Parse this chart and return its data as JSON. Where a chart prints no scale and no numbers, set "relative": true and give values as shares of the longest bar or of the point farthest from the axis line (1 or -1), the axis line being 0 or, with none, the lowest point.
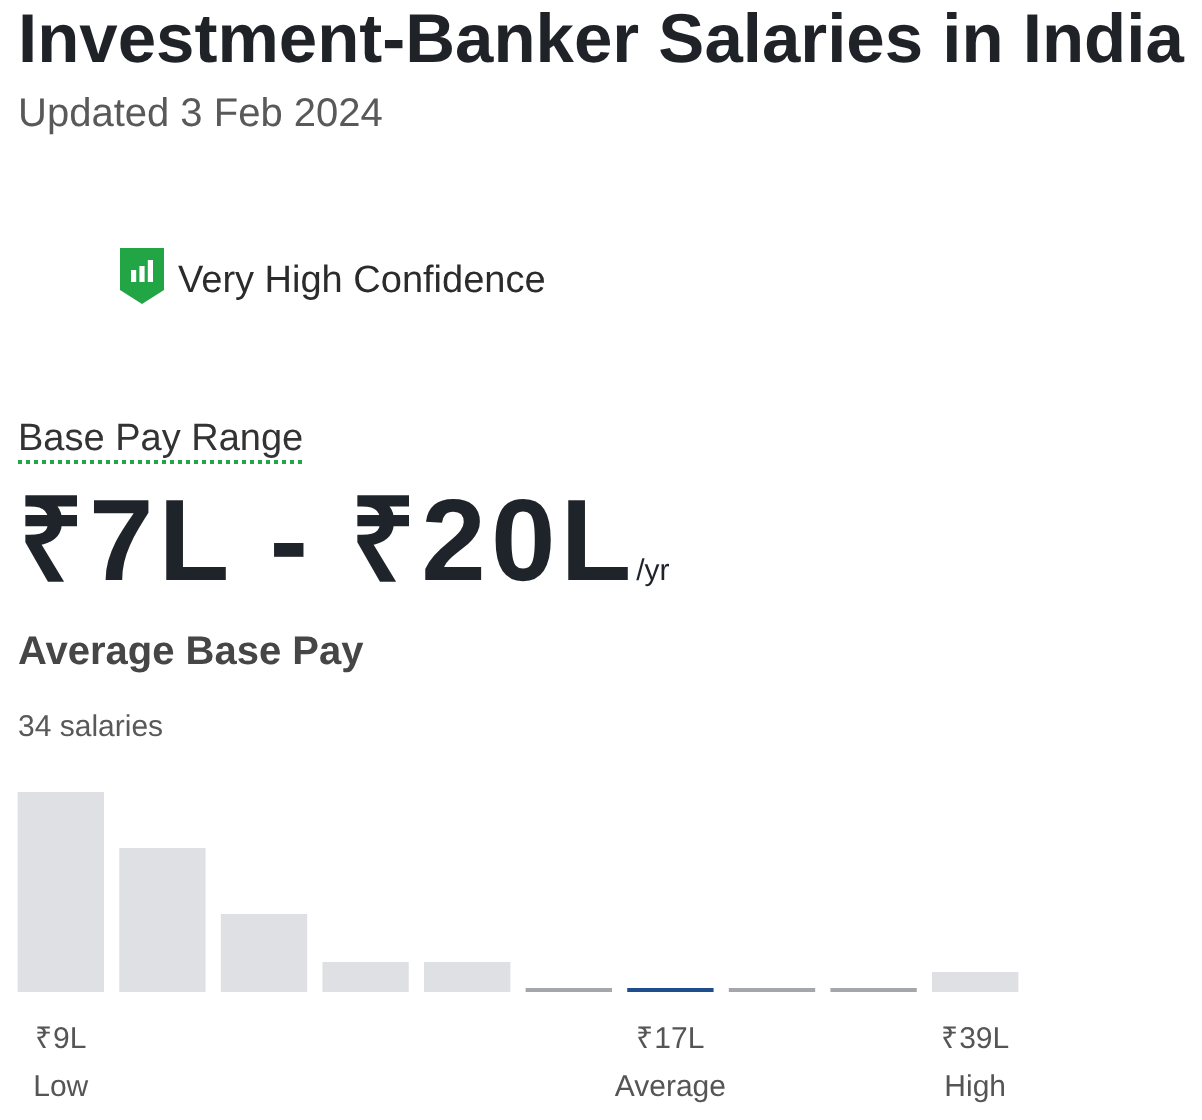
{
  "chart_data": {
    "type": "bar",
    "title": "Investment-Banker Salaries in India",
    "subtitle": "Updated 3 Feb 2024",
    "categories": [
      "₹9L",
      null,
      null,
      null,
      null,
      null,
      "₹17L",
      null,
      null,
      "₹39L"
    ],
    "values": [
      1,
      0.72,
      0.39,
      0.15,
      0.15,
      0,
      0,
      0,
      0,
      0.1
    ],
    "colors": [
      "#dfe0e4",
      "#dfe0e4",
      "#dfe0e4",
      "#dfe0e4",
      "#dfe0e4",
      "#a3a6ab",
      "#1f4e8c",
      "#a3a6ab",
      "#a3a6ab",
      "#dfe0e4"
    ],
    "relative": true,
    "annotations": [
      "Very High Confidence",
      "Base Pay Range",
      "₹7L - ₹20L",
      "/yr",
      "Average Base Pay",
      "34 salaries",
      "Low",
      "Average",
      "High"
    ]
  }
}
